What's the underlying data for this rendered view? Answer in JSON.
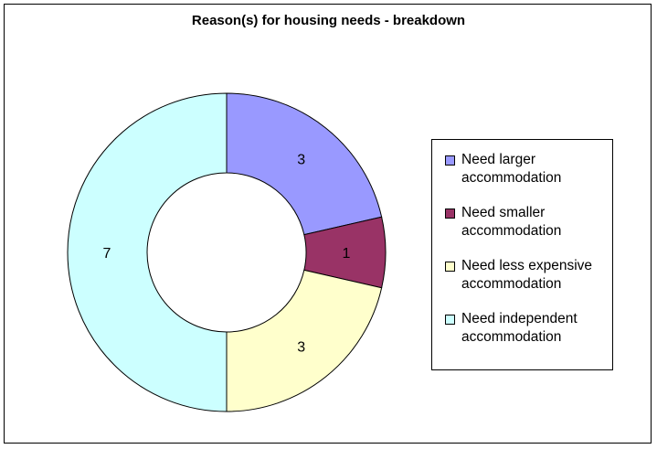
{
  "chart_data": {
    "type": "pie",
    "title": "Reason(s) for housing needs - breakdown",
    "legend_position": "right",
    "series": [
      {
        "label": "Need larger accommodation",
        "value": 3,
        "color": "#9999ff"
      },
      {
        "label": "Need smaller accommodation",
        "value": 1,
        "color": "#993366"
      },
      {
        "label": "Need less expensive accommodation",
        "value": 3,
        "color": "#ffffcc"
      },
      {
        "label": "Need independent accommodation",
        "value": 7,
        "color": "#ccffff"
      }
    ]
  }
}
